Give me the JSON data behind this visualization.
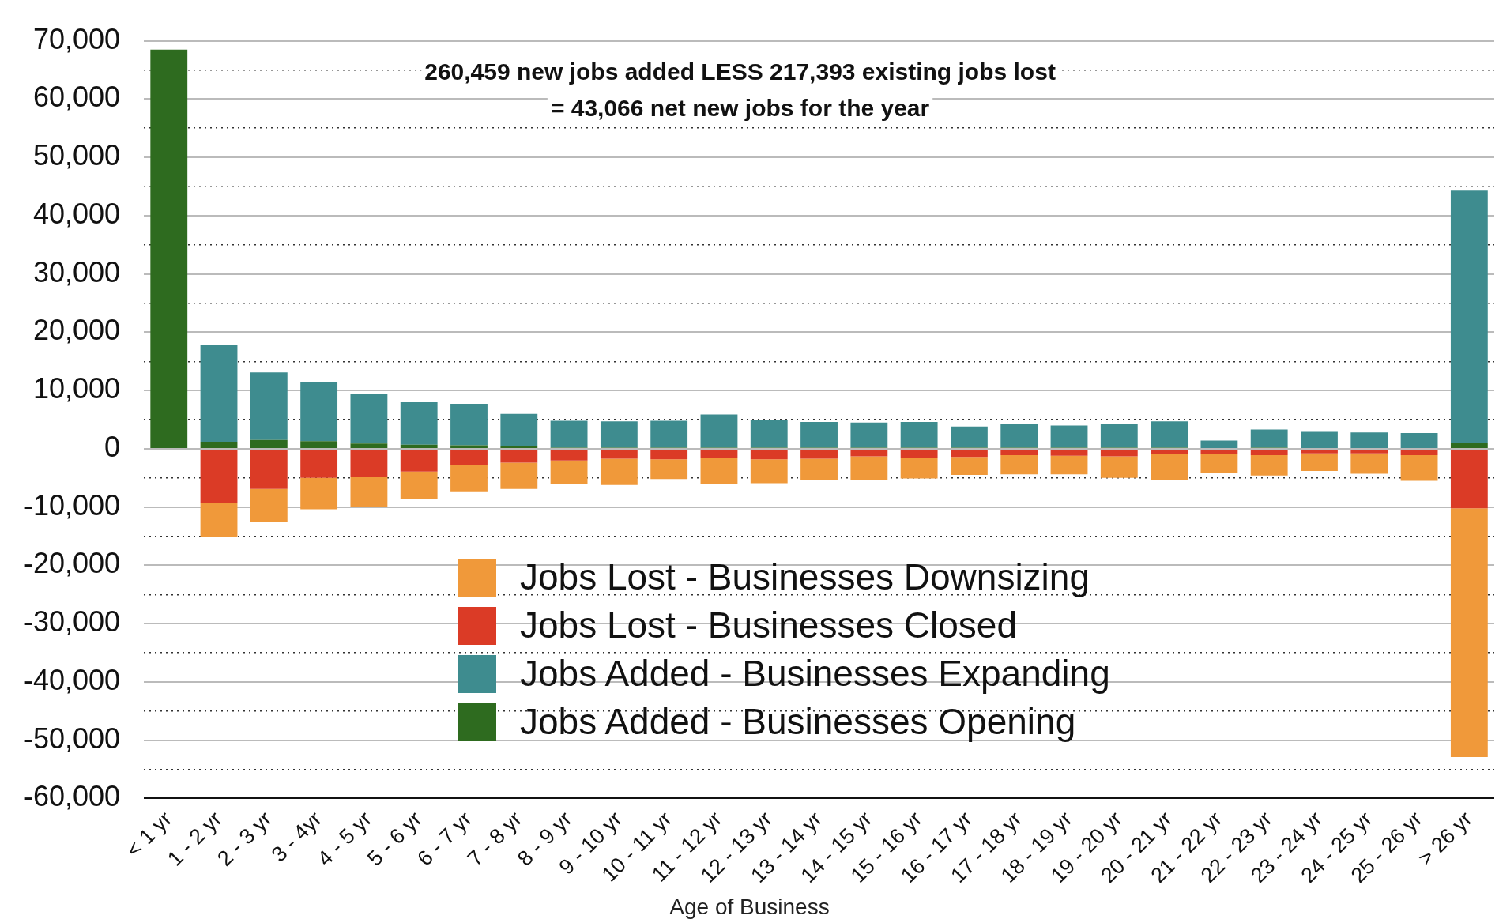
{
  "chart_data": {
    "type": "bar",
    "stacked": true,
    "xlabel": "Age of Business",
    "categories": [
      "< 1 yr",
      "1 - 2 yr",
      "2 - 3 yr",
      "3 - 4yr",
      "4 - 5 yr",
      "5 - 6 yr",
      "6 - 7 yr",
      "7 - 8 yr",
      "8 - 9 yr",
      "9 - 10 yr",
      "10 - 11 yr",
      "11 - 12 yr",
      "12 - 13 yr",
      "13 - 14 yr",
      "14 - 15 yr",
      "15 - 16 yr",
      "16 - 17 yr",
      "17 - 18 yr",
      "18 - 19 yr",
      "19 - 20 yr",
      "20 - 21 yr",
      "21 - 22 yr",
      "22 - 23 yr",
      "23 - 24 yr",
      "24 - 25 yr",
      "25 - 26 yr",
      "> 26 yr"
    ],
    "series": [
      {
        "name": "Jobs Added - Businesses Opening",
        "color": "#2e6b1f",
        "values": [
          68500,
          1200,
          1500,
          1300,
          900,
          700,
          600,
          400,
          200,
          200,
          200,
          200,
          200,
          200,
          200,
          200,
          200,
          200,
          200,
          200,
          200,
          0,
          200,
          0,
          0,
          0,
          1000
        ]
      },
      {
        "name": "Jobs Added - Businesses Expanding",
        "color": "#3e8c8f",
        "values": [
          0,
          16600,
          11600,
          10200,
          8500,
          7300,
          7100,
          5600,
          4600,
          4500,
          4600,
          5700,
          4700,
          4400,
          4300,
          4400,
          3600,
          4000,
          3800,
          4100,
          4500,
          1400,
          3100,
          2900,
          2800,
          2700,
          43300
        ]
      },
      {
        "name": "Jobs Lost - Businesses Closed",
        "color": "#db3b26",
        "values": [
          0,
          -9300,
          -6900,
          -5000,
          -4900,
          -3900,
          -2800,
          -2400,
          -2000,
          -1700,
          -1800,
          -1600,
          -1800,
          -1700,
          -1300,
          -1500,
          -1400,
          -1100,
          -1200,
          -1300,
          -900,
          -900,
          -1100,
          -800,
          -800,
          -1100,
          -10200
        ]
      },
      {
        "name": "Jobs Lost - Businesses Downsizing",
        "color": "#f0993a",
        "values": [
          0,
          -5800,
          -5600,
          -5400,
          -5100,
          -4700,
          -4500,
          -4500,
          -4100,
          -4500,
          -3400,
          -4500,
          -4100,
          -3700,
          -4000,
          -3600,
          -3100,
          -3300,
          -3200,
          -3700,
          -4500,
          -3200,
          -3500,
          -3000,
          -3500,
          -4400,
          -42700
        ]
      }
    ],
    "ylim": [
      -60000,
      70000
    ],
    "yticks": [
      {
        "value": -60000,
        "label": "-60,000"
      },
      {
        "value": -55000,
        "label": null
      },
      {
        "value": -50000,
        "label": "-50,000"
      },
      {
        "value": -45000,
        "label": null
      },
      {
        "value": -40000,
        "label": "-40,000"
      },
      {
        "value": -35000,
        "label": null
      },
      {
        "value": -30000,
        "label": "-30,000"
      },
      {
        "value": -25000,
        "label": null
      },
      {
        "value": -20000,
        "label": "-20,000"
      },
      {
        "value": -15000,
        "label": null
      },
      {
        "value": -10000,
        "label": "-10,000"
      },
      {
        "value": -5000,
        "label": null
      },
      {
        "value": 0,
        "label": "0"
      },
      {
        "value": 5000,
        "label": null
      },
      {
        "value": 10000,
        "label": "10,000"
      },
      {
        "value": 15000,
        "label": null
      },
      {
        "value": 20000,
        "label": "20,000"
      },
      {
        "value": 25000,
        "label": null
      },
      {
        "value": 30000,
        "label": "30,000"
      },
      {
        "value": 35000,
        "label": null
      },
      {
        "value": 40000,
        "label": "40,000"
      },
      {
        "value": 45000,
        "label": null
      },
      {
        "value": 50000,
        "label": "50,000"
      },
      {
        "value": 55000,
        "label": null
      },
      {
        "value": 60000,
        "label": "60,000"
      },
      {
        "value": 65000,
        "label": null
      },
      {
        "value": 70000,
        "label": "70,000"
      }
    ],
    "grid": "y",
    "legend": "bottom",
    "annotations": [
      "260,459 new jobs added LESS 217,393 existing jobs lost",
      "= 43,066 net new jobs for the year"
    ]
  }
}
